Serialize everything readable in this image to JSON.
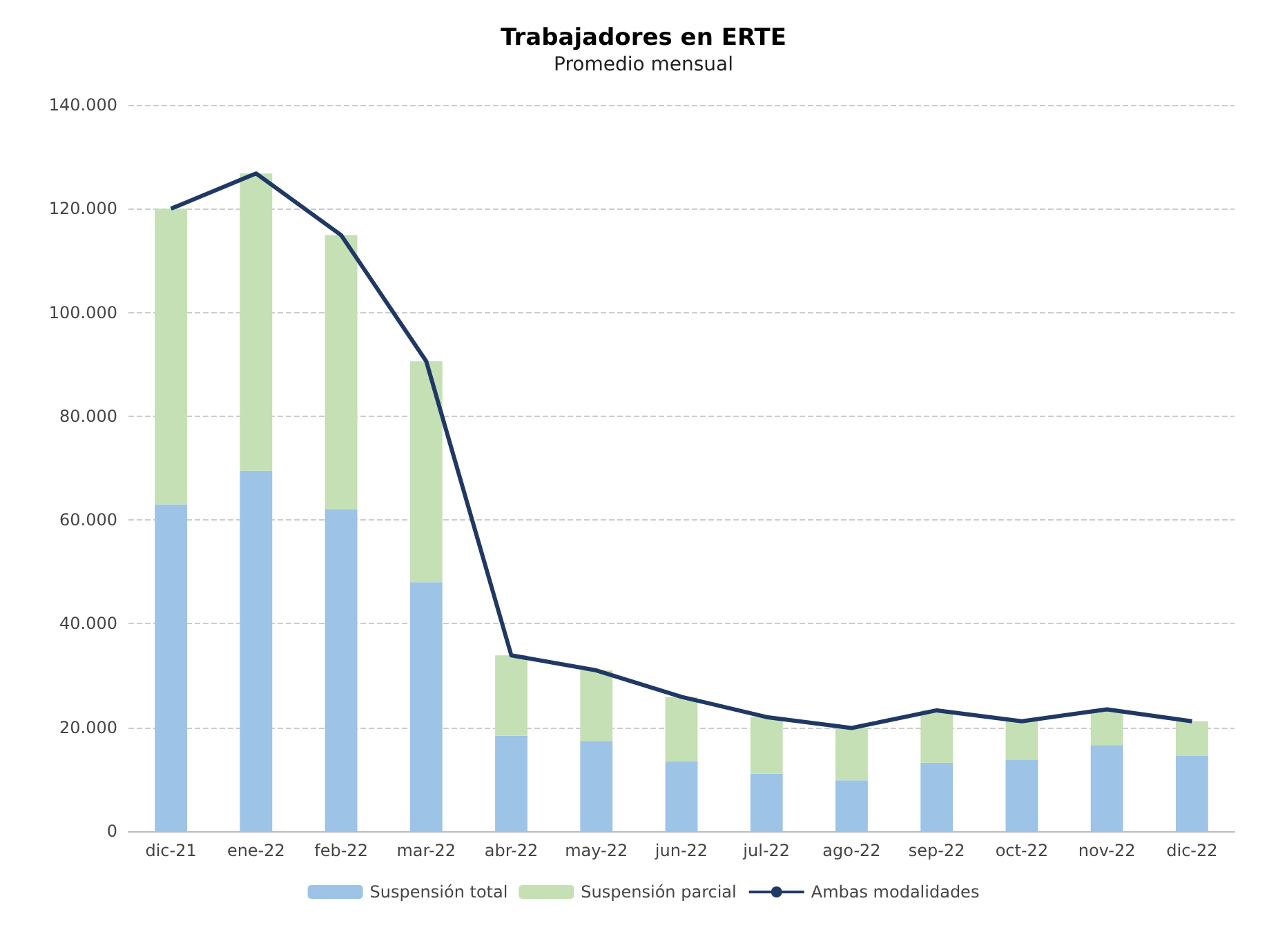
{
  "chart_data": {
    "type": "bar",
    "title": "Trabajadores en ERTE",
    "subtitle": "Promedio mensual",
    "categories": [
      "dic-21",
      "ene-22",
      "feb-22",
      "mar-22",
      "abr-22",
      "may-22",
      "jun-22",
      "jul-22",
      "ago-22",
      "sep-22",
      "oct-22",
      "nov-22",
      "dic-22"
    ],
    "stacked": true,
    "series": [
      {
        "name": "Suspensión total",
        "color": "#9dc3e6",
        "values": [
          63000,
          69500,
          62000,
          48000,
          18400,
          17300,
          13500,
          11100,
          9800,
          13200,
          13700,
          16600,
          14500
        ]
      },
      {
        "name": "Suspensión parcial",
        "color": "#c5e0b4",
        "values": [
          57000,
          57300,
          52900,
          42600,
          15500,
          13700,
          12400,
          10900,
          10100,
          10100,
          7500,
          6900,
          6700
        ]
      },
      {
        "name": "Ambas modalidades",
        "type": "line",
        "color": "#1f3864",
        "values": [
          120000,
          126800,
          114900,
          90600,
          33900,
          31000,
          25900,
          22000,
          19900,
          23300,
          21200,
          23500,
          21200
        ]
      }
    ],
    "ylim": [
      0,
      140000
    ],
    "yticks": [
      {
        "value": 0,
        "label": "0"
      },
      {
        "value": 20000,
        "label": "20.000"
      },
      {
        "value": 40000,
        "label": "40.000"
      },
      {
        "value": 60000,
        "label": "60.000"
      },
      {
        "value": 80000,
        "label": "80.000"
      },
      {
        "value": 100000,
        "label": "100.000"
      },
      {
        "value": 120000,
        "label": "120.000"
      },
      {
        "value": 140000,
        "label": "140.000"
      }
    ],
    "grid": "y",
    "legend": "bottom",
    "marker": "none"
  }
}
